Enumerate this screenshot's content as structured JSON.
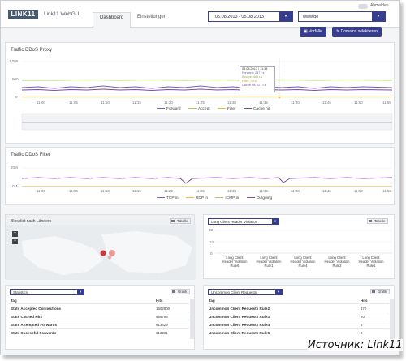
{
  "header": {
    "logo_text": "LINK11",
    "app_name": "Link11 WebGUI",
    "tabs": [
      {
        "label": "Dashboard"
      },
      {
        "label": "Einstellungen"
      }
    ],
    "logout_label": "Abmelden",
    "date_range": "05.08.2013 - 05.08.2013",
    "domain": "www.de",
    "buttons": {
      "presets": "Vorfälle",
      "select_domains": "Domains selektieren"
    }
  },
  "proxy_panel": {
    "title": "Traffic DDoS Proxy",
    "yticks": [
      "1,000",
      "500",
      "0"
    ],
    "xticks": [
      "11:00",
      "11:05",
      "11:10",
      "11:15",
      "11:20",
      "11:25",
      "11:30",
      "11:35",
      "11:40",
      "11:45",
      "11:50",
      "11:55"
    ],
    "legend": [
      "Forward",
      "Accept",
      "Filter",
      "Cache hit"
    ],
    "colors": {
      "forward": "#6f5fb8",
      "accept": "#a9cf63",
      "filter": "#f0b73c",
      "cache": "#7d4a9e"
    },
    "tooltip": {
      "time": "05.08.2013 / 11:38",
      "forward": "Forward: 287 r.s",
      "accept": "Accept: 465 r.s",
      "filter": "Filter: 0 r.s",
      "cache": "Cache hit: 227 r.s"
    }
  },
  "filter_panel": {
    "title": "Traffic DDoS Filter",
    "yticks": [
      "20M",
      "0M"
    ],
    "xticks": [
      "11:00",
      "11:05",
      "11:10",
      "11:15",
      "11:20",
      "11:25",
      "11:30",
      "11:35",
      "11:40",
      "11:45",
      "11:50",
      "11:55"
    ],
    "legend": [
      "TCP in",
      "UDP in",
      "ICMP in",
      "Outgoing"
    ],
    "colors": {
      "tcp": "#6f5fb8",
      "udp": "#f0b73c",
      "icmp": "#a9cf63",
      "outgoing": "#7d4a9e"
    }
  },
  "map_panel": {
    "title": "Blocklist nach Ländern",
    "table_button": "Tabelle"
  },
  "violation_panel": {
    "select": "Long Client Header Violation",
    "table_button": "Tabelle",
    "yticks": [
      "20",
      "10",
      "0"
    ],
    "bars": [
      "Long Client Header Violation Rule6",
      "Long Client Header Violation Rule1",
      "Long Client Header Violation Rule4",
      "Long Client Header Violation Rule2",
      "Long Client Header Violation Rule1"
    ]
  },
  "stats_panel": {
    "select": "Statistics",
    "chart_button": "Grafik",
    "columns": [
      "Tag",
      "Hits"
    ],
    "rows": [
      {
        "tag": "Stats Accepted Connections",
        "hits": "1502800"
      },
      {
        "tag": "Stats Cached Hits",
        "hits": "656793"
      },
      {
        "tag": "Stats Attempted Forwards",
        "hits": "613429"
      },
      {
        "tag": "Stats Sucessful Forwards",
        "hits": "613281"
      }
    ]
  },
  "requests_panel": {
    "select": "Uncommon Client Requests",
    "chart_button": "Grafik",
    "columns": [
      "Tag",
      "Hits"
    ],
    "rows": [
      {
        "tag": "Uncommon Client Requests Rule2",
        "hits": "370"
      },
      {
        "tag": "Uncommon Client Requests Rule3",
        "hits": "50"
      },
      {
        "tag": "Uncommon Client Requests Rule4",
        "hits": "5"
      },
      {
        "tag": "Uncommon Client Requests Rule5",
        "hits": "0"
      }
    ]
  },
  "caption": "Источник: Link11"
}
